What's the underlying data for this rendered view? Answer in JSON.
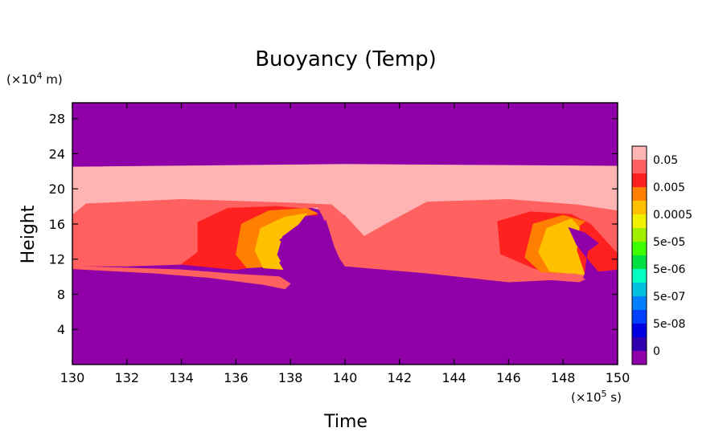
{
  "chart_data": {
    "type": "heatmap",
    "title": "Buoyancy (Temp)",
    "xlabel": "Time",
    "ylabel": "Height",
    "x_unit_prefix": "(×10",
    "x_unit_exp": "5",
    "x_unit_suffix": " s)",
    "y_unit_prefix": "(×10",
    "y_unit_exp": "4",
    "y_unit_suffix": " m)",
    "xlim": [
      130,
      150
    ],
    "ylim": [
      0,
      29.8
    ],
    "x_ticks": [
      "130",
      "132",
      "134",
      "136",
      "138",
      "140",
      "142",
      "144",
      "146",
      "148",
      "150"
    ],
    "y_ticks": [
      "4",
      "8",
      "12",
      "16",
      "20",
      "24",
      "28"
    ],
    "grid": false,
    "legend_position": "right",
    "colorbar": {
      "labels": [
        "0.05",
        "0.005",
        "0.0005",
        "5e-05",
        "5e-06",
        "5e-07",
        "5e-08",
        "0"
      ],
      "colors": [
        "#ffb4b4",
        "#ff6060",
        "#ff2020",
        "#ff8000",
        "#ffc000",
        "#f0f000",
        "#a0f000",
        "#40ff00",
        "#00e040",
        "#00ffc0",
        "#00c0e0",
        "#0080ff",
        "#0040ff",
        "#0000e0",
        "#3000b0",
        "#9000a8"
      ]
    },
    "background_color": "#9000a8",
    "layers": [
      {
        "level": "0.05",
        "color": "#ffb4b4",
        "polys": [
          [
            [
              130,
              22.5
            ],
            [
              140,
              22.8
            ],
            [
              150,
              22.6
            ],
            [
              150,
              17.5
            ],
            [
              146,
              18.8
            ],
            [
              143,
              18.5
            ],
            [
              141.5,
              16
            ],
            [
              140.7,
              14.6
            ],
            [
              140,
              17
            ],
            [
              138,
              18.4
            ],
            [
              134,
              18.8
            ],
            [
              130.5,
              18.2
            ],
            [
              130,
              17
            ]
          ]
        ]
      },
      {
        "level": "0.005",
        "color": "#ff6060",
        "polys": [
          [
            [
              130,
              17
            ],
            [
              130.5,
              18.3
            ],
            [
              134,
              18.8
            ],
            [
              138,
              18.4
            ],
            [
              139.5,
              18.2
            ],
            [
              140.1,
              16.6
            ],
            [
              140.7,
              14.6
            ],
            [
              141.3,
              13
            ],
            [
              140.5,
              11.3
            ],
            [
              140,
              11.2
            ],
            [
              139.6,
              13
            ],
            [
              139.2,
              16.8
            ],
            [
              139,
              17.9
            ],
            [
              137,
              17.5
            ],
            [
              135,
              16
            ],
            [
              134.6,
              12.8
            ],
            [
              134,
              11.4
            ],
            [
              132,
              11.2
            ],
            [
              130,
              11.2
            ]
          ],
          [
            [
              140,
              11.2
            ],
            [
              143,
              10.4
            ],
            [
              146,
              9.4
            ],
            [
              148.7,
              9.8
            ],
            [
              149.2,
              10.6
            ],
            [
              150,
              10.8
            ],
            [
              150,
              17.5
            ],
            [
              148.5,
              18.2
            ],
            [
              146,
              18.8
            ],
            [
              143,
              18.5
            ],
            [
              141.5,
              16
            ],
            [
              140.7,
              14.6
            ],
            [
              140,
              11.2
            ]
          ]
        ]
      },
      {
        "level": "0.0005",
        "color": "#ff2020",
        "polys": [
          [
            [
              134,
              11.4
            ],
            [
              134.6,
              12.8
            ],
            [
              134.6,
              16.2
            ],
            [
              135.7,
              17.8
            ],
            [
              137.5,
              18
            ],
            [
              138.7,
              17.7
            ],
            [
              139,
              17
            ],
            [
              137.8,
              16.9
            ],
            [
              137.4,
              15.5
            ],
            [
              137.2,
              13.3
            ],
            [
              137.5,
              11.5
            ],
            [
              136,
              10.8
            ]
          ],
          [
            [
              146.9,
              11
            ],
            [
              145.7,
              12.6
            ],
            [
              145.6,
              16.3
            ],
            [
              146.8,
              17.4
            ],
            [
              148.3,
              17.1
            ],
            [
              149,
              16
            ],
            [
              150,
              12.6
            ],
            [
              150,
              10.8
            ],
            [
              149.2,
              10.6
            ],
            [
              148,
              10
            ]
          ]
        ]
      },
      {
        "level": "5e-05",
        "color": "#ff8000",
        "polys": [
          [
            [
              136.4,
              11
            ],
            [
              136,
              12.5
            ],
            [
              136.2,
              16
            ],
            [
              137.2,
              17.5
            ],
            [
              138.6,
              17.8
            ],
            [
              139,
              17.2
            ],
            [
              138,
              16.6
            ],
            [
              137.2,
              15
            ],
            [
              137.2,
              13
            ],
            [
              137.6,
              11.2
            ]
          ],
          [
            [
              147.2,
              10.5
            ],
            [
              146.6,
              12.2
            ],
            [
              146.9,
              16
            ],
            [
              148,
              17
            ],
            [
              148.8,
              16.3
            ],
            [
              148.3,
              15
            ],
            [
              148.2,
              12.8
            ],
            [
              148.7,
              10.3
            ]
          ]
        ]
      },
      {
        "level": "5e-06",
        "color": "#ffc000",
        "polys": [
          [
            [
              137,
              11
            ],
            [
              136.7,
              13
            ],
            [
              136.9,
              15.5
            ],
            [
              137.8,
              16.8
            ],
            [
              138.6,
              17.2
            ],
            [
              138.3,
              16
            ],
            [
              137.7,
              14.6
            ],
            [
              137.5,
              12.5
            ],
            [
              137.8,
              10.8
            ]
          ],
          [
            [
              147.5,
              10.6
            ],
            [
              147.1,
              12.8
            ],
            [
              147.4,
              15.5
            ],
            [
              148.3,
              16.6
            ],
            [
              148.6,
              15.6
            ],
            [
              148.5,
              13
            ],
            [
              148.8,
              10.2
            ]
          ]
        ]
      },
      {
        "level": "purple-cut",
        "color": "#9000a8",
        "polys": [
          [
            [
              138,
              15
            ],
            [
              138.6,
              16
            ],
            [
              139,
              16.3
            ],
            [
              139.3,
              16.4
            ],
            [
              139.6,
              13.4
            ],
            [
              139.9,
              11.3
            ],
            [
              140,
              8.4
            ],
            [
              138.1,
              8.4
            ],
            [
              138,
              9.5
            ],
            [
              137.6,
              11.6
            ],
            [
              138,
              13
            ],
            [
              137.6,
              14.2
            ]
          ],
          [
            [
              148.2,
              15.6
            ],
            [
              148.8,
              15
            ],
            [
              149.3,
              13.8
            ],
            [
              148.9,
              12.9
            ],
            [
              148.8,
              10.4
            ],
            [
              148.6,
              8.4
            ],
            [
              150,
              8.4
            ],
            [
              150,
              10.8
            ],
            [
              149.3,
              10.5
            ],
            [
              149,
              11.6
            ],
            [
              148.5,
              13.6
            ]
          ]
        ]
      },
      {
        "level": "lower-edge",
        "color": "#ff6060",
        "polys": [
          [
            [
              130,
              11.2
            ],
            [
              134,
              10.8
            ],
            [
              136,
              10.3
            ],
            [
              137.6,
              10
            ],
            [
              138,
              9.2
            ],
            [
              137.8,
              8.6
            ],
            [
              137,
              9.1
            ],
            [
              135,
              9.9
            ],
            [
              133,
              10.4
            ],
            [
              130,
              10.9
            ]
          ],
          [
            [
              140.1,
              11.2
            ],
            [
              143,
              10.6
            ],
            [
              146,
              10
            ],
            [
              148.6,
              9.4
            ],
            [
              148.8,
              9.7
            ],
            [
              148.5,
              10.3
            ],
            [
              146,
              10.6
            ],
            [
              143,
              10.9
            ],
            [
              140.6,
              11.3
            ]
          ]
        ]
      }
    ]
  }
}
